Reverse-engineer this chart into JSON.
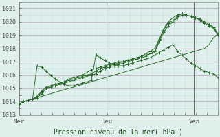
{
  "title": "",
  "xlabel": "Pression niveau de la mer( hPa )",
  "ylabel": "",
  "bg_color": "#dff0ec",
  "grid_color_major": "#c8b8c8",
  "grid_color_minor": "#c0e4dc",
  "line_color": "#2d6a2d",
  "ylim": [
    1013,
    1021.5
  ],
  "yticks": [
    1013,
    1014,
    1015,
    1016,
    1017,
    1018,
    1019,
    1020,
    1021
  ],
  "xtick_labels": [
    "Mer",
    "Jeu",
    "Ven"
  ],
  "xtick_positions": [
    0,
    0.44,
    0.88
  ],
  "vline_positions": [
    0,
    0.44,
    0.88
  ],
  "num_points": 45,
  "series": {
    "line_straight": [
      1013.8,
      1014.0,
      1014.1,
      1014.2,
      1014.3,
      1014.4,
      1014.5,
      1014.6,
      1014.7,
      1014.8,
      1014.9,
      1015.0,
      1015.1,
      1015.2,
      1015.3,
      1015.4,
      1015.5,
      1015.6,
      1015.7,
      1015.8,
      1015.9,
      1016.0,
      1016.1,
      1016.2,
      1016.3,
      1016.4,
      1016.5,
      1016.6,
      1016.7,
      1016.8,
      1016.9,
      1017.0,
      1017.1,
      1017.2,
      1017.3,
      1017.4,
      1017.5,
      1017.6,
      1017.7,
      1017.8,
      1017.9,
      1018.0,
      1018.3,
      1018.8,
      1019.1
    ],
    "line_high_peak": [
      1013.8,
      1014.0,
      1014.1,
      1014.2,
      1016.7,
      1016.6,
      1016.3,
      1016.0,
      1015.7,
      1015.5,
      1015.3,
      1015.2,
      1015.2,
      1015.3,
      1015.4,
      1015.5,
      1015.6,
      1017.5,
      1017.3,
      1017.1,
      1016.9,
      1016.8,
      1016.7,
      1016.7,
      1016.8,
      1016.9,
      1017.0,
      1017.1,
      1017.2,
      1017.3,
      1017.5,
      1017.7,
      1017.9,
      1018.1,
      1018.3,
      1017.8,
      1017.5,
      1017.2,
      1016.9,
      1016.7,
      1016.5,
      1016.3,
      1016.2,
      1016.1,
      1015.8
    ],
    "line_mid1": [
      1013.8,
      1014.0,
      1014.1,
      1014.2,
      1014.3,
      1014.6,
      1015.0,
      1015.2,
      1015.3,
      1015.4,
      1015.5,
      1015.7,
      1015.8,
      1015.9,
      1016.0,
      1016.2,
      1016.4,
      1016.5,
      1016.6,
      1016.7,
      1016.8,
      1016.9,
      1017.0,
      1017.0,
      1017.1,
      1017.2,
      1017.3,
      1017.4,
      1017.5,
      1017.6,
      1017.7,
      1018.5,
      1019.2,
      1019.7,
      1020.0,
      1020.3,
      1020.5,
      1020.5,
      1020.4,
      1020.3,
      1020.2,
      1020.0,
      1019.8,
      1019.6,
      1019.0
    ],
    "line_mid2": [
      1013.8,
      1014.0,
      1014.1,
      1014.2,
      1014.4,
      1014.7,
      1015.0,
      1015.1,
      1015.2,
      1015.3,
      1015.4,
      1015.5,
      1015.6,
      1015.7,
      1015.8,
      1015.9,
      1016.0,
      1016.1,
      1016.3,
      1016.5,
      1016.6,
      1016.7,
      1016.8,
      1016.9,
      1017.0,
      1017.1,
      1017.2,
      1017.3,
      1017.4,
      1017.6,
      1017.8,
      1018.6,
      1019.4,
      1019.9,
      1020.1,
      1020.4,
      1020.6,
      1020.5,
      1020.4,
      1020.3,
      1020.1,
      1019.9,
      1019.7,
      1019.5,
      1019.0
    ],
    "line_mid3": [
      1013.8,
      1014.0,
      1014.1,
      1014.2,
      1014.4,
      1014.8,
      1015.1,
      1015.2,
      1015.3,
      1015.4,
      1015.5,
      1015.6,
      1015.7,
      1015.8,
      1015.9,
      1016.0,
      1016.1,
      1016.3,
      1016.5,
      1016.6,
      1016.7,
      1016.8,
      1016.9,
      1017.0,
      1017.1,
      1017.2,
      1017.3,
      1017.4,
      1017.6,
      1017.8,
      1018.0,
      1018.7,
      1019.5,
      1020.0,
      1020.3,
      1020.5,
      1020.6,
      1020.5,
      1020.4,
      1020.3,
      1020.2,
      1020.0,
      1019.8,
      1019.6,
      1019.1
    ]
  },
  "marker_series": [
    "line_mid1",
    "line_mid2",
    "line_mid3",
    "line_high_peak"
  ],
  "plain_series": [
    "line_straight"
  ]
}
